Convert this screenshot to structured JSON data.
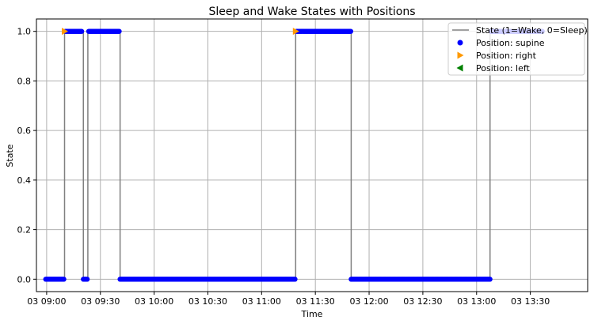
{
  "chart_data": {
    "type": "line",
    "title": "Sleep and Wake States with Positions",
    "xlabel": "Time",
    "ylabel": "State",
    "x_ticks": [
      "03 09:00",
      "03 09:30",
      "03 10:00",
      "03 10:30",
      "03 11:00",
      "03 11:30",
      "03 12:00",
      "03 12:30",
      "03 13:00",
      "03 13:30"
    ],
    "x_tick_minutes": [
      540,
      570,
      600,
      630,
      660,
      690,
      720,
      750,
      780,
      810
    ],
    "xlim_minutes": [
      534.3,
      842.0
    ],
    "ylim": [
      -0.05,
      1.05
    ],
    "y_ticks": [
      "0.0",
      "0.2",
      "0.4",
      "0.6",
      "0.8",
      "1.0"
    ],
    "y_tick_values": [
      0.0,
      0.2,
      0.4,
      0.6,
      0.8,
      1.0
    ],
    "grid": true,
    "legend_position": "top-right",
    "state_series": {
      "name": "State (1=Wake, 0=Sleep)",
      "color": "#808080",
      "segments": [
        {
          "start": 539.5,
          "end": 550.0,
          "state": 0
        },
        {
          "start": 550.0,
          "end": 560.5,
          "state": 1
        },
        {
          "start": 560.5,
          "end": 563.0,
          "state": 0
        },
        {
          "start": 563.0,
          "end": 581.0,
          "state": 1
        },
        {
          "start": 581.0,
          "end": 679.0,
          "state": 0
        },
        {
          "start": 679.0,
          "end": 710.0,
          "state": 1
        },
        {
          "start": 710.0,
          "end": 787.5,
          "state": 0
        },
        {
          "start": 787.5,
          "end": 817.0,
          "state": 1
        }
      ]
    },
    "position_series": [
      {
        "name": "Position: supine",
        "color": "#0000ff",
        "marker": "circle",
        "runs": [
          {
            "start": 539.5,
            "end": 550.0,
            "state": 0
          },
          {
            "start": 550.5,
            "end": 560.0,
            "state": 1
          },
          {
            "start": 560.5,
            "end": 563.0,
            "state": 0
          },
          {
            "start": 563.5,
            "end": 581.0,
            "state": 1
          },
          {
            "start": 581.0,
            "end": 679.0,
            "state": 0
          },
          {
            "start": 679.5,
            "end": 710.0,
            "state": 1
          },
          {
            "start": 710.0,
            "end": 787.5,
            "state": 0
          },
          {
            "start": 788.0,
            "end": 817.0,
            "state": 1
          }
        ]
      },
      {
        "name": "Position: right",
        "color": "#ff9900",
        "marker": "triangle-right",
        "points": [
          {
            "x": 550.0,
            "y": 1
          },
          {
            "x": 679.0,
            "y": 1
          }
        ]
      },
      {
        "name": "Position: left",
        "color": "#008000",
        "marker": "triangle-left",
        "points": []
      }
    ]
  }
}
